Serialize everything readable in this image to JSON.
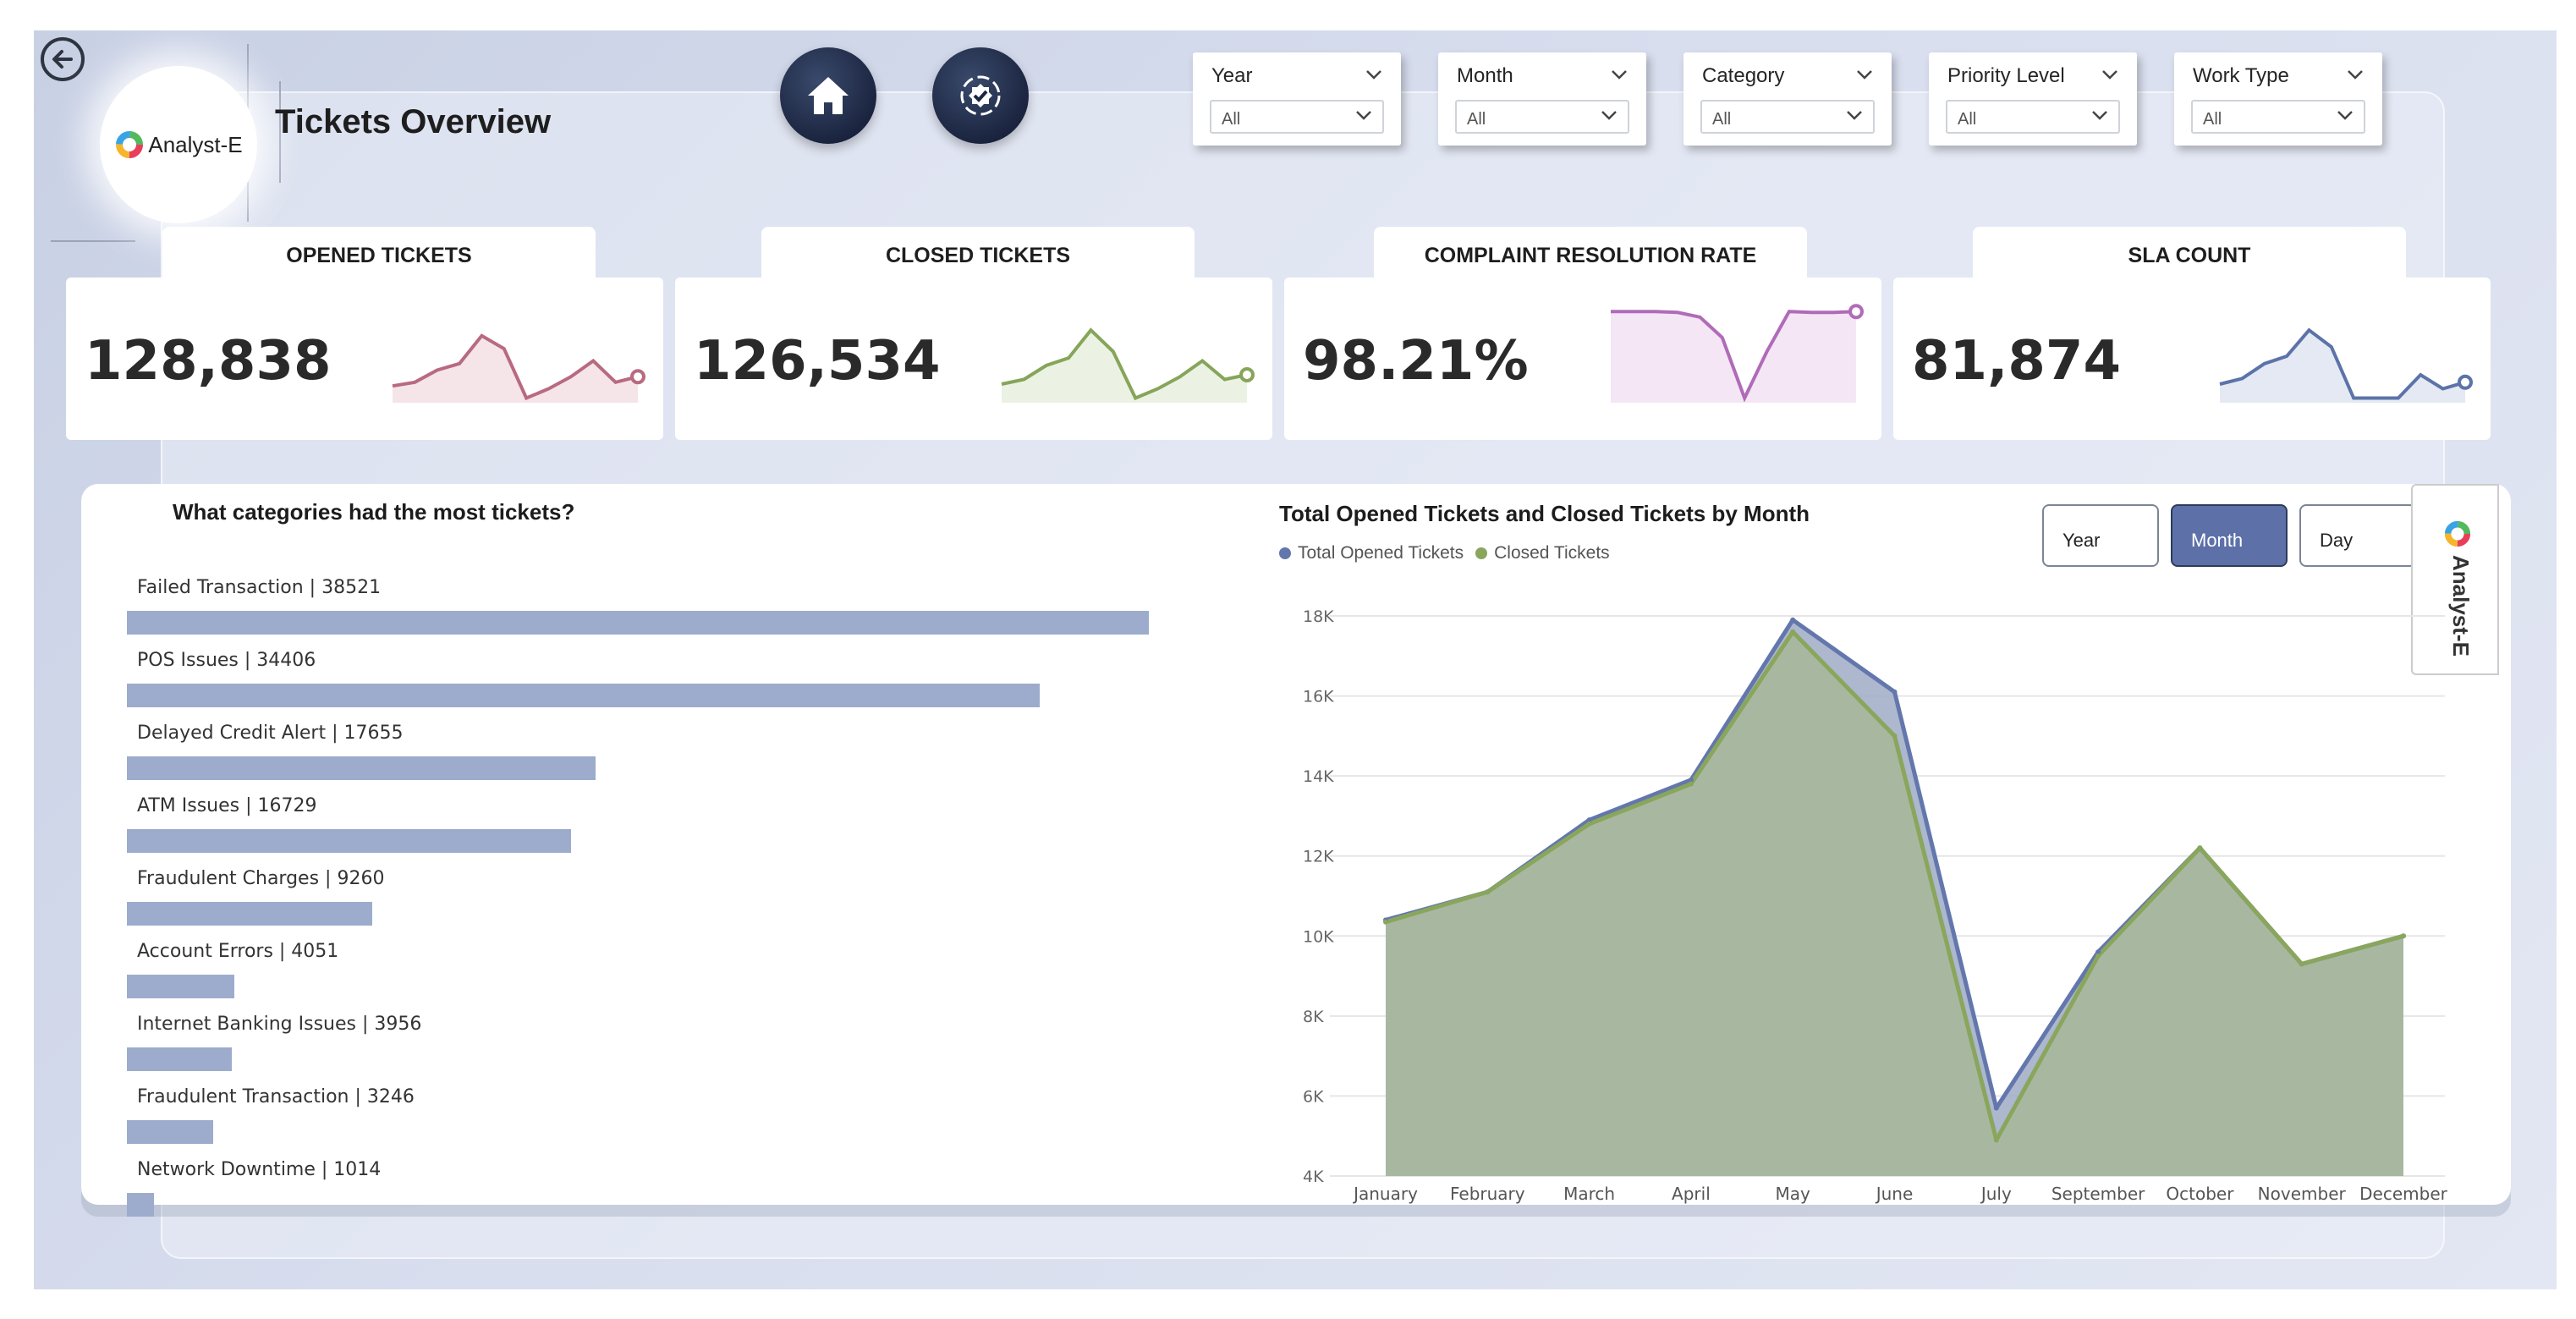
{
  "header": {
    "title": "Tickets Overview",
    "logo_text": "Analyst-E"
  },
  "nav": {
    "back_icon": "arrow-left-circle-icon",
    "home_icon": "home-icon",
    "settings_icon": "gear-check-icon"
  },
  "slicers": [
    {
      "label": "Year",
      "value": "All"
    },
    {
      "label": "Month",
      "value": "All"
    },
    {
      "label": "Category",
      "value": "All"
    },
    {
      "label": "Priority Level",
      "value": "All"
    },
    {
      "label": "Work Type",
      "value": "All"
    }
  ],
  "kpis": [
    {
      "title": "OPENED TICKETS",
      "value": "128,838",
      "color": "#b86a80",
      "fill": "#f3dfe4",
      "spark": [
        0.18,
        0.22,
        0.35,
        0.42,
        0.72,
        0.58,
        0.05,
        0.15,
        0.28,
        0.45,
        0.22,
        0.28
      ]
    },
    {
      "title": "CLOSED TICKETS",
      "value": "126,534",
      "color": "#86a55a",
      "fill": "#e6efdc",
      "spark": [
        0.2,
        0.25,
        0.4,
        0.48,
        0.78,
        0.55,
        0.05,
        0.15,
        0.28,
        0.45,
        0.25,
        0.3
      ]
    },
    {
      "title": "COMPLAINT RESOLUTION RATE",
      "value": "98.21%",
      "color": "#b06bb8",
      "fill": "#f1e0f3",
      "spark": [
        0.98,
        0.98,
        0.98,
        0.97,
        0.92,
        0.7,
        0.05,
        0.55,
        0.98,
        0.97,
        0.97,
        0.98
      ]
    },
    {
      "title": "SLA COUNT",
      "value": "81,874",
      "color": "#5b73a8",
      "fill": "#dde4f1",
      "spark": [
        0.2,
        0.26,
        0.42,
        0.5,
        0.78,
        0.6,
        0.05,
        0.05,
        0.05,
        0.3,
        0.15,
        0.22
      ]
    }
  ],
  "categories": {
    "title": "What categories had the most tickets?",
    "color": "#9daccc",
    "max": 38521,
    "items": [
      {
        "label": "Failed Transaction | 38521",
        "value": 38521
      },
      {
        "label": "POS Issues | 34406",
        "value": 34406
      },
      {
        "label": "Delayed Credit Alert | 17655",
        "value": 17655
      },
      {
        "label": "ATM Issues | 16729",
        "value": 16729
      },
      {
        "label": "Fraudulent Charges | 9260",
        "value": 9260
      },
      {
        "label": "Account Errors | 4051",
        "value": 4051
      },
      {
        "label": "Internet Banking Issues | 3956",
        "value": 3956
      },
      {
        "label": "Fraudulent Transaction | 3246",
        "value": 3246
      },
      {
        "label": "Network Downtime | 1014",
        "value": 1014
      }
    ]
  },
  "toggles": {
    "year": "Year",
    "month": "Month",
    "day": "Day"
  },
  "side_tab": {
    "text": "Analyst-E"
  },
  "chart_data": {
    "type": "area",
    "title": "Total Opened Tickets and Closed Tickets by Month",
    "categories": [
      "January",
      "February",
      "March",
      "April",
      "May",
      "June",
      "July",
      "September",
      "October",
      "November",
      "December"
    ],
    "series": [
      {
        "name": "Total Opened Tickets",
        "color": "#6377ad",
        "values": [
          10400,
          11100,
          12900,
          13900,
          17900,
          16100,
          5700,
          9600,
          12200,
          9300,
          10000
        ]
      },
      {
        "name": "Closed Tickets",
        "color": "#89a65c",
        "values": [
          10350,
          11100,
          12800,
          13800,
          17600,
          15000,
          4900,
          9500,
          12200,
          9300,
          10000
        ]
      }
    ],
    "y_ticks": [
      "4K",
      "6K",
      "8K",
      "10K",
      "12K",
      "14K",
      "16K",
      "18K"
    ],
    "ylim": [
      4000,
      18000
    ],
    "fill_color": "#a8b8a0",
    "legend": "top-left",
    "grid": true
  }
}
